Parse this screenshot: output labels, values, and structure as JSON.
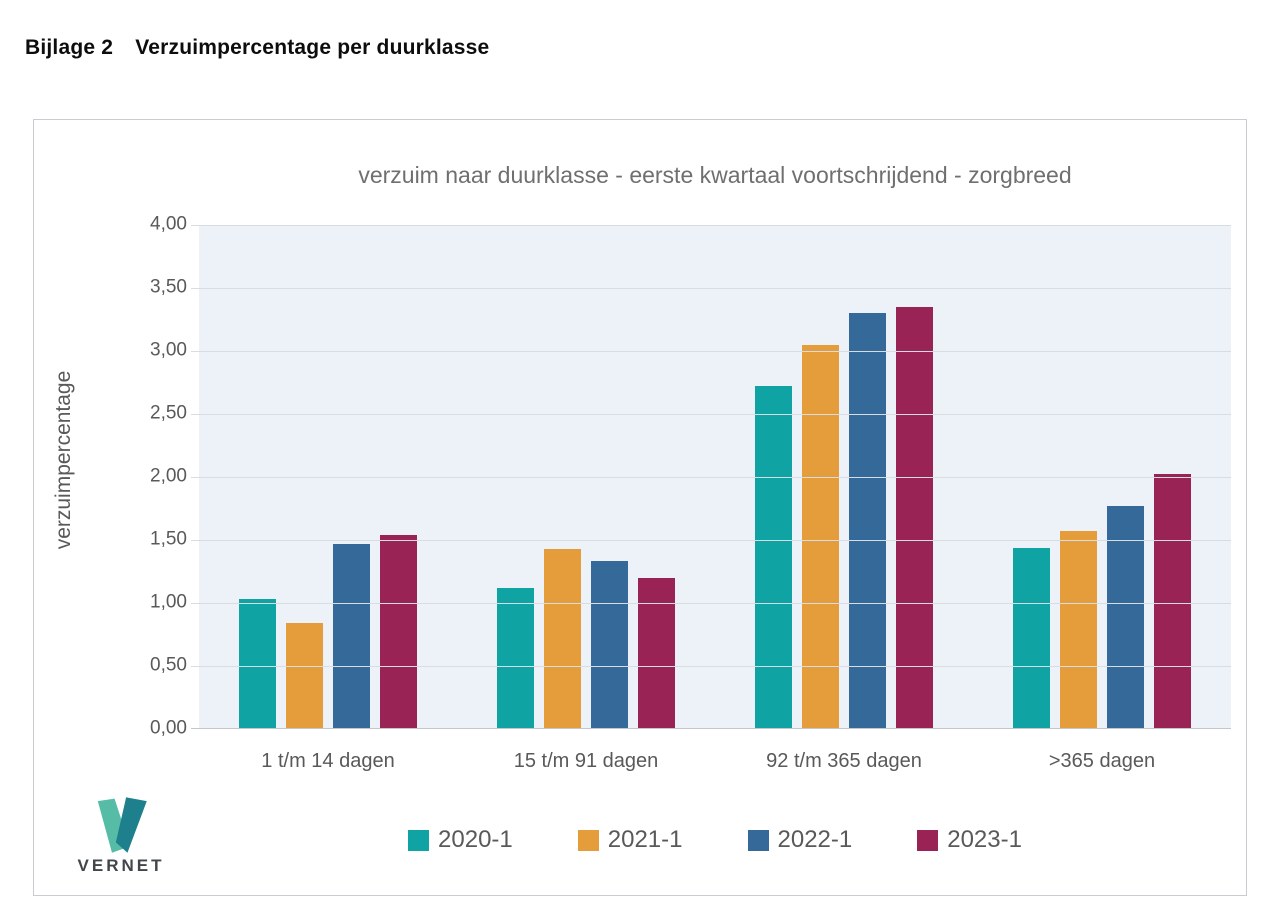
{
  "page": {
    "heading_label": "Bijlage 2",
    "heading_title": "Verzuimpercentage per duurklasse"
  },
  "logo": {
    "text": "VERNET",
    "color_light": "#56bca6",
    "color_dark": "#1e808c"
  },
  "chart_data": {
    "type": "bar",
    "title": "verzuim naar duurklasse - eerste kwartaal voortschrijdend - zorgbreed",
    "xlabel": "",
    "ylabel": "verzuimpercentage",
    "ylim": [
      0,
      4
    ],
    "ytick_step": 0.5,
    "ytick_labels": [
      "4,00",
      "3,50",
      "3,00",
      "2,50",
      "2,00",
      "1,50",
      "1,00",
      "0,50",
      "0,00"
    ],
    "grid": true,
    "legend_position": "bottom",
    "plot_bg": "#edf2f8",
    "categories": [
      "1 t/m 14 dagen",
      "15 t/m 91 dagen",
      "92 t/m 365 dagen",
      ">365 dagen"
    ],
    "series": [
      {
        "name": "2020-1",
        "color": "#0fa3a3",
        "values": [
          1.03,
          1.12,
          2.72,
          1.44
        ]
      },
      {
        "name": "2021-1",
        "color": "#e49d3a",
        "values": [
          0.84,
          1.43,
          3.05,
          1.57
        ]
      },
      {
        "name": "2022-1",
        "color": "#35699a",
        "values": [
          1.47,
          1.33,
          3.3,
          1.77
        ]
      },
      {
        "name": "2023-1",
        "color": "#9a2355",
        "values": [
          1.54,
          1.2,
          3.35,
          2.02
        ]
      }
    ]
  }
}
